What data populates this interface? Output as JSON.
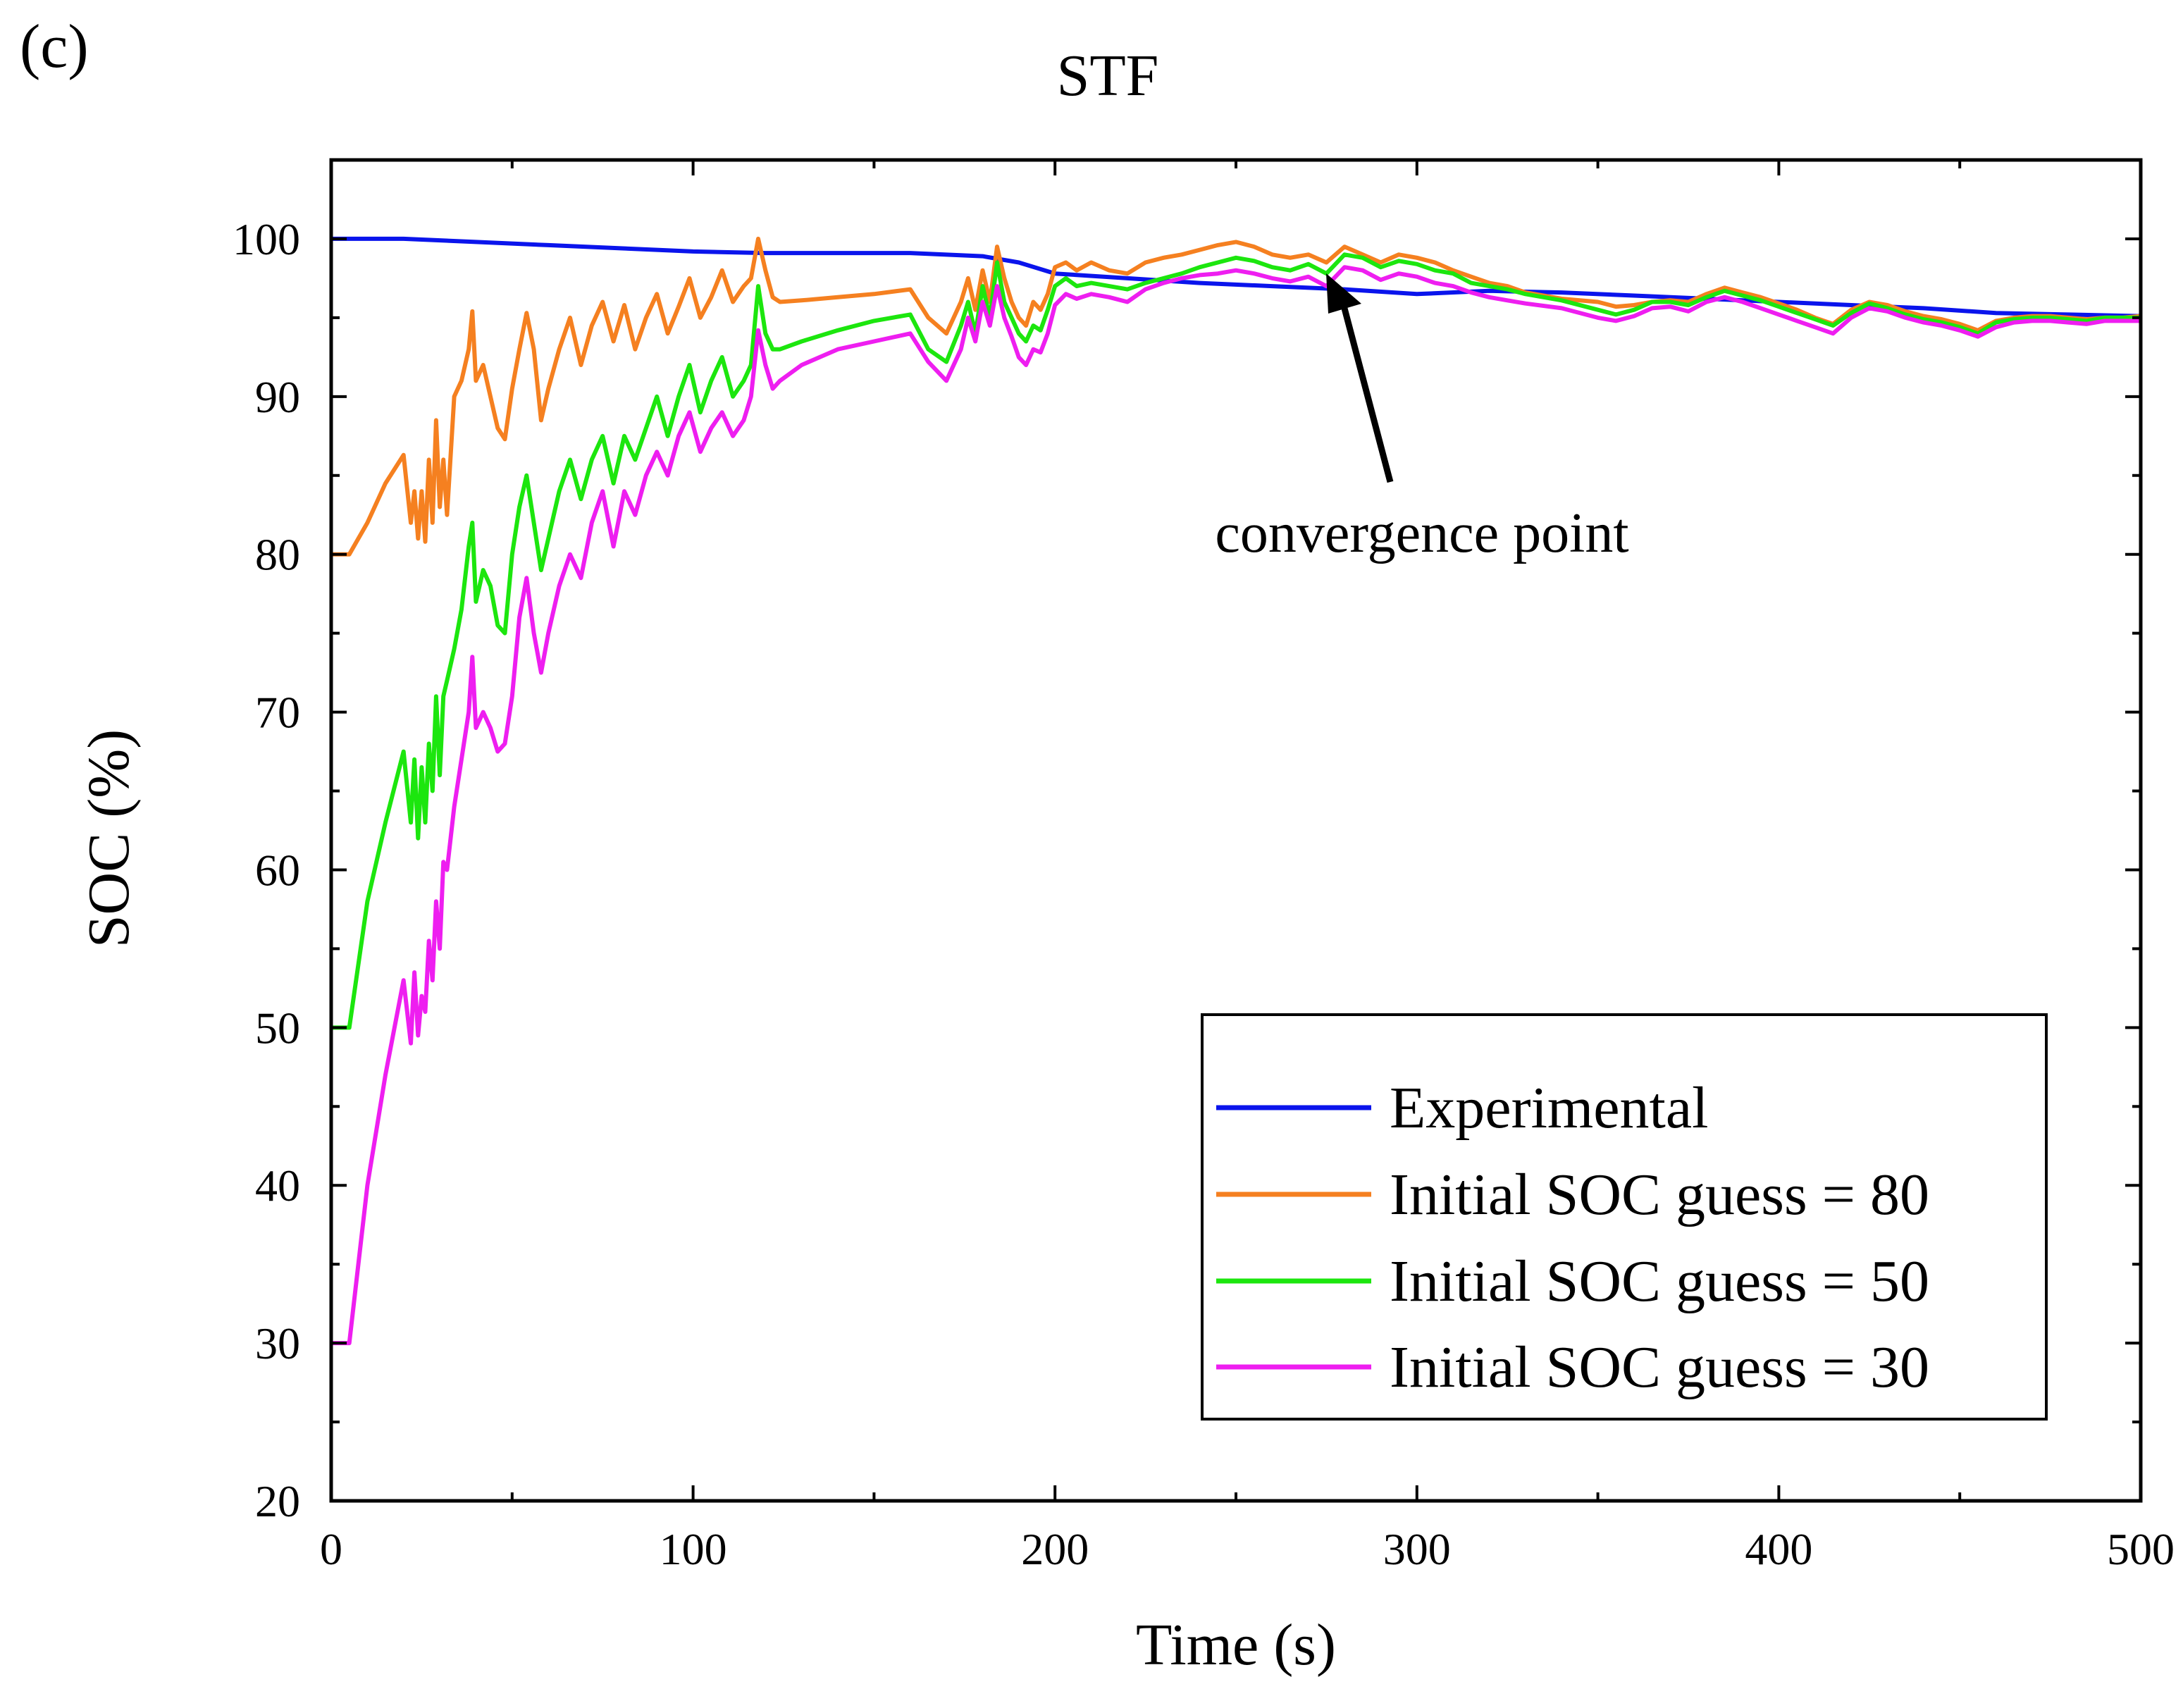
{
  "chart_data": {
    "type": "line",
    "panel_label": "(c)",
    "title": "STF",
    "xlabel": "Time (s)",
    "ylabel": "SOC (%)",
    "xlim": [
      0,
      500
    ],
    "ylim": [
      20,
      105
    ],
    "xticks": [
      "0",
      "100",
      "200",
      "300",
      "400",
      "500"
    ],
    "yticks": [
      "20",
      "30",
      "40",
      "50",
      "60",
      "70",
      "80",
      "90",
      "100"
    ],
    "legend_position": "bottom-right",
    "annotation": {
      "text": "convergence point",
      "target_x": 275,
      "target_y": 98
    },
    "series": [
      {
        "name": "Experimental",
        "color": "#0a14ec",
        "x": [
          0,
          20,
          40,
          60,
          80,
          100,
          120,
          140,
          160,
          180,
          190,
          200,
          220,
          240,
          260,
          280,
          300,
          320,
          340,
          360,
          380,
          400,
          420,
          440,
          460,
          480,
          500
        ],
        "y": [
          100,
          100,
          99.8,
          99.6,
          99.4,
          99.2,
          99.1,
          99.1,
          99.1,
          98.9,
          98.5,
          97.8,
          97.5,
          97.2,
          97,
          96.8,
          96.5,
          96.7,
          96.6,
          96.4,
          96.2,
          96,
          95.8,
          95.6,
          95.3,
          95.2,
          95.1
        ]
      },
      {
        "name": "Initial SOC guess = 80",
        "color": "#f58020",
        "x": [
          0,
          5,
          10,
          15,
          20,
          22,
          23,
          24,
          25,
          26,
          27,
          28,
          29,
          30,
          31,
          32,
          34,
          36,
          38,
          39,
          40,
          42,
          44,
          46,
          48,
          50,
          52,
          54,
          56,
          58,
          60,
          63,
          66,
          69,
          72,
          75,
          78,
          81,
          84,
          87,
          90,
          93,
          96,
          99,
          102,
          105,
          108,
          111,
          114,
          116,
          118,
          120,
          122,
          124,
          130,
          140,
          150,
          160,
          165,
          170,
          174,
          176,
          178,
          180,
          182,
          184,
          186,
          188,
          190,
          192,
          194,
          196,
          198,
          200,
          203,
          206,
          210,
          215,
          220,
          225,
          230,
          235,
          240,
          245,
          250,
          255,
          260,
          265,
          270,
          275,
          280,
          285,
          290,
          295,
          300,
          305,
          310,
          315,
          320,
          325,
          330,
          340,
          350,
          355,
          360,
          365,
          370,
          375,
          380,
          385,
          390,
          395,
          400,
          405,
          410,
          415,
          420,
          425,
          430,
          435,
          440,
          445,
          450,
          455,
          460,
          465,
          470,
          475,
          480,
          485,
          490,
          495,
          500
        ],
        "y": [
          80,
          80,
          82,
          84.5,
          86.3,
          82,
          84,
          81,
          84,
          80.8,
          86,
          82,
          88.5,
          83,
          86,
          82.5,
          90,
          91,
          93,
          95.4,
          91,
          92,
          90,
          88,
          87.3,
          90.5,
          93,
          95.3,
          93,
          88.5,
          90.5,
          93,
          95,
          92,
          94.5,
          96,
          93.5,
          95.8,
          93,
          95,
          96.5,
          94,
          95.7,
          97.5,
          95,
          96.3,
          98,
          96,
          97,
          97.5,
          100,
          98,
          96.3,
          96,
          96.1,
          96.3,
          96.5,
          96.8,
          95,
          94,
          96,
          97.5,
          95.5,
          98,
          96,
          99.5,
          97.5,
          96,
          95,
          94.5,
          96,
          95.5,
          96.5,
          98.2,
          98.5,
          98,
          98.5,
          98,
          97.8,
          98.5,
          98.8,
          99,
          99.3,
          99.6,
          99.8,
          99.5,
          99,
          98.8,
          99,
          98.5,
          99.5,
          99,
          98.5,
          99,
          98.8,
          98.5,
          98,
          97.6,
          97.2,
          97,
          96.6,
          96.2,
          96,
          95.7,
          95.8,
          96,
          96.1,
          96,
          96.5,
          96.9,
          96.6,
          96.3,
          95.9,
          95.5,
          95,
          94.6,
          95.5,
          96,
          95.8,
          95.4,
          95.1,
          94.9,
          94.6,
          94.2,
          94.8,
          95,
          95.1,
          95.1,
          95,
          94.9,
          95,
          95,
          95.1
        ]
      },
      {
        "name": "Initial SOC guess = 50",
        "color": "#1ce60e",
        "x": [
          0,
          5,
          10,
          15,
          20,
          22,
          23,
          24,
          25,
          26,
          27,
          28,
          29,
          30,
          31,
          32,
          34,
          36,
          38,
          39,
          40,
          42,
          44,
          46,
          48,
          50,
          52,
          54,
          56,
          58,
          60,
          63,
          66,
          69,
          72,
          75,
          78,
          81,
          84,
          87,
          90,
          93,
          96,
          99,
          102,
          105,
          108,
          111,
          114,
          116,
          118,
          120,
          122,
          124,
          130,
          140,
          150,
          160,
          165,
          170,
          174,
          176,
          178,
          180,
          182,
          184,
          186,
          188,
          190,
          192,
          194,
          196,
          198,
          200,
          203,
          206,
          210,
          215,
          220,
          225,
          230,
          235,
          240,
          245,
          250,
          255,
          260,
          265,
          270,
          275,
          280,
          285,
          290,
          295,
          300,
          305,
          310,
          315,
          320,
          325,
          330,
          340,
          350,
          355,
          360,
          365,
          370,
          375,
          380,
          385,
          390,
          395,
          400,
          405,
          410,
          415,
          420,
          425,
          430,
          435,
          440,
          445,
          450,
          455,
          460,
          465,
          470,
          475,
          480,
          485,
          490,
          495,
          500
        ],
        "y": [
          50,
          50,
          58,
          63,
          67.5,
          63,
          67,
          62,
          66.5,
          63,
          68,
          65,
          71,
          66,
          71,
          72,
          74,
          76.5,
          80.5,
          82,
          77,
          79,
          78,
          75.5,
          75,
          80,
          83,
          85,
          82,
          79,
          81,
          84,
          86,
          83.5,
          86,
          87.5,
          84.5,
          87.5,
          86,
          88,
          90,
          87.5,
          90,
          92,
          89,
          91,
          92.5,
          90,
          91,
          92,
          97,
          94,
          93,
          93,
          93.5,
          94.2,
          94.8,
          95.2,
          93,
          92.2,
          94.5,
          96,
          94,
          97,
          95,
          98.5,
          96,
          95,
          94,
          93.5,
          94.5,
          94.2,
          95.5,
          97,
          97.5,
          97,
          97.2,
          97,
          96.8,
          97.2,
          97.5,
          97.8,
          98.2,
          98.5,
          98.8,
          98.6,
          98.2,
          98,
          98.4,
          97.8,
          99,
          98.8,
          98.2,
          98.6,
          98.4,
          98,
          97.8,
          97.2,
          97,
          96.8,
          96.5,
          96.1,
          95.5,
          95.2,
          95.5,
          96,
          96,
          95.8,
          96.3,
          96.7,
          96.4,
          96.1,
          95.7,
          95.3,
          94.9,
          94.5,
          95.3,
          95.9,
          95.6,
          95.2,
          94.9,
          94.7,
          94.4,
          94,
          94.7,
          94.9,
          95,
          95,
          94.9,
          94.8,
          95,
          95,
          95
        ]
      },
      {
        "name": "Initial SOC guess = 30",
        "color": "#ee1ef0",
        "x": [
          0,
          5,
          10,
          15,
          20,
          22,
          23,
          24,
          25,
          26,
          27,
          28,
          29,
          30,
          31,
          32,
          34,
          36,
          38,
          39,
          40,
          42,
          44,
          46,
          48,
          50,
          52,
          54,
          56,
          58,
          60,
          63,
          66,
          69,
          72,
          75,
          78,
          81,
          84,
          87,
          90,
          93,
          96,
          99,
          102,
          105,
          108,
          111,
          114,
          116,
          118,
          120,
          122,
          124,
          130,
          140,
          150,
          160,
          165,
          170,
          174,
          176,
          178,
          180,
          182,
          184,
          186,
          188,
          190,
          192,
          194,
          196,
          198,
          200,
          203,
          206,
          210,
          215,
          220,
          225,
          230,
          235,
          240,
          245,
          250,
          255,
          260,
          265,
          270,
          275,
          280,
          285,
          290,
          295,
          300,
          305,
          310,
          315,
          320,
          325,
          330,
          340,
          350,
          355,
          360,
          365,
          370,
          375,
          380,
          385,
          390,
          395,
          400,
          405,
          410,
          415,
          420,
          425,
          430,
          435,
          440,
          445,
          450,
          455,
          460,
          465,
          470,
          475,
          480,
          485,
          490,
          495,
          500
        ],
        "y": [
          30,
          30,
          40,
          47,
          53,
          49,
          53.5,
          49.5,
          52,
          51,
          55.5,
          53,
          58,
          55,
          60.5,
          60,
          64,
          67,
          70,
          73.5,
          69,
          70,
          69,
          67.5,
          68,
          71,
          76,
          78.5,
          75,
          72.5,
          75,
          78,
          80,
          78.5,
          82,
          84,
          80.5,
          84,
          82.5,
          85,
          86.5,
          85,
          87.5,
          89,
          86.5,
          88,
          89,
          87.5,
          88.5,
          90,
          94.2,
          92,
          90.5,
          91,
          92,
          93,
          93.5,
          94,
          92.2,
          91,
          93,
          95,
          93.5,
          96,
          94.5,
          97,
          95,
          93.8,
          92.5,
          92,
          93,
          92.8,
          94,
          95.8,
          96.5,
          96.2,
          96.5,
          96.3,
          96,
          96.8,
          97.2,
          97.5,
          97.7,
          97.8,
          98,
          97.8,
          97.5,
          97.3,
          97.6,
          97,
          98.2,
          98,
          97.4,
          97.8,
          97.6,
          97.2,
          97,
          96.6,
          96.3,
          96.1,
          95.9,
          95.6,
          95,
          94.8,
          95.1,
          95.6,
          95.7,
          95.4,
          96,
          96.3,
          96,
          95.6,
          95.2,
          94.8,
          94.4,
          94,
          95,
          95.6,
          95.4,
          95,
          94.7,
          94.5,
          94.2,
          93.8,
          94.4,
          94.7,
          94.8,
          94.8,
          94.7,
          94.6,
          94.8,
          94.8,
          94.8
        ]
      }
    ]
  }
}
